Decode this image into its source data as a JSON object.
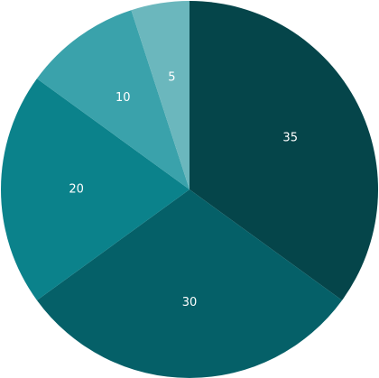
{
  "chart_data": {
    "type": "pie",
    "title": "",
    "slices": [
      {
        "label": "35",
        "value": 35,
        "color": "#05454a"
      },
      {
        "label": "30",
        "value": 30,
        "color": "#056068"
      },
      {
        "label": "20",
        "value": 20,
        "color": "#0b828b"
      },
      {
        "label": "10",
        "value": 10,
        "color": "#3aa2ab"
      },
      {
        "label": "5",
        "value": 5,
        "color": "#6bb7bd"
      }
    ],
    "start_angle_deg": 0,
    "direction": "clockwise",
    "legend": "none"
  }
}
